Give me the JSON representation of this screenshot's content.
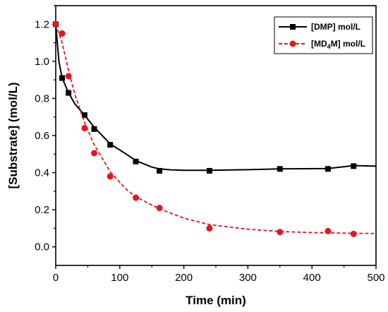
{
  "chart_data": {
    "type": "scatter",
    "xlabel": "Time (min)",
    "ylabel": "[Substrate] (mol/L)",
    "xlim": [
      0,
      500
    ],
    "ylim": [
      -0.1,
      1.3
    ],
    "xticks": [
      0,
      100,
      200,
      300,
      400,
      500
    ],
    "yticks": [
      0.0,
      0.2,
      0.4,
      0.6,
      0.8,
      1.0,
      1.2
    ],
    "xtick_labels": [
      "0",
      "100",
      "200",
      "300",
      "400",
      "500"
    ],
    "ytick_labels": [
      "0.0",
      "0.2",
      "0.4",
      "0.6",
      "0.8",
      "1.0",
      "1.2"
    ],
    "grid": false,
    "legend_position": "top-right",
    "series": [
      {
        "name": "[DMP] mol/L",
        "legend_main": "[DMP] mol/L",
        "color": "#000000",
        "marker": "square",
        "line_style": "solid",
        "x": [
          0,
          10,
          20,
          45,
          60,
          85,
          125,
          162,
          240,
          350,
          425,
          465
        ],
        "y": [
          1.2,
          0.91,
          0.83,
          0.71,
          0.635,
          0.55,
          0.46,
          0.41,
          0.41,
          0.42,
          0.42,
          0.435
        ],
        "fit_x": [
          0,
          5,
          10,
          20,
          30,
          45,
          60,
          85,
          110,
          125,
          150,
          162,
          180,
          200,
          240,
          300,
          350,
          425,
          465,
          500
        ],
        "fit_y": [
          1.2,
          1.0,
          0.91,
          0.83,
          0.77,
          0.71,
          0.645,
          0.555,
          0.5,
          0.465,
          0.43,
          0.42,
          0.415,
          0.413,
          0.413,
          0.416,
          0.42,
          0.422,
          0.438,
          0.435
        ]
      },
      {
        "name": "[MD4M] mol/L",
        "legend_main": "[MD",
        "legend_sub": "4",
        "legend_rest": "M] mol/L",
        "color": "#e8141c",
        "marker": "circle",
        "line_style": "dashed",
        "x": [
          0,
          10,
          20,
          45,
          60,
          85,
          125,
          162,
          240,
          350,
          425,
          465
        ],
        "y": [
          1.2,
          1.15,
          0.92,
          0.64,
          0.505,
          0.38,
          0.265,
          0.21,
          0.1,
          0.08,
          0.085,
          0.07
        ],
        "fit_x": [
          0,
          10,
          20,
          30,
          45,
          60,
          85,
          110,
          125,
          150,
          162,
          200,
          240,
          300,
          350,
          400,
          450,
          500
        ],
        "fit_y": [
          1.2,
          1.1,
          0.95,
          0.82,
          0.67,
          0.55,
          0.405,
          0.31,
          0.27,
          0.225,
          0.205,
          0.155,
          0.12,
          0.095,
          0.083,
          0.077,
          0.074,
          0.072
        ]
      }
    ]
  }
}
